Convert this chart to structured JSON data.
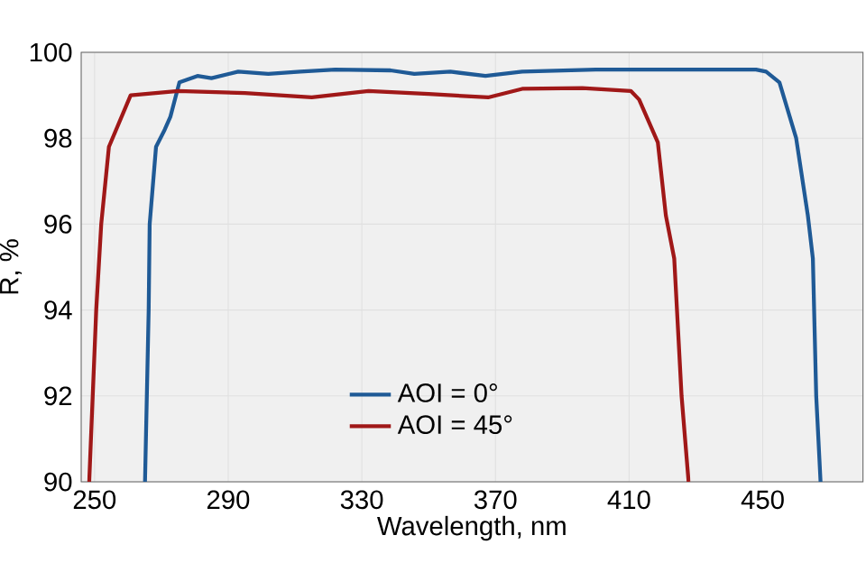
{
  "chart_data": {
    "type": "line",
    "xlabel": "Wavelength, nm",
    "ylabel": "R, %",
    "xlim": [
      246,
      480
    ],
    "ylim": [
      90,
      100
    ],
    "xticks": [
      250,
      290,
      330,
      370,
      410,
      450
    ],
    "yticks": [
      90,
      92,
      94,
      96,
      98,
      100
    ],
    "grid": true,
    "legend": "bottom",
    "series": [
      {
        "name": "AOI = 0°",
        "color": "#1f5a96",
        "x": [
          265.1,
          266.2,
          266.5,
          268.4,
          271,
          272.7,
          275.4,
          280.8,
          285,
          293,
          302,
          311.6,
          322,
          338.6,
          345.7,
          356.5,
          367,
          378,
          400,
          448,
          451,
          455,
          460,
          463.5,
          465,
          466,
          467.3
        ],
        "values": [
          90,
          94,
          96,
          97.8,
          98.2,
          98.5,
          99.3,
          99.45,
          99.4,
          99.55,
          99.5,
          99.55,
          99.6,
          99.58,
          99.5,
          99.55,
          99.45,
          99.55,
          99.6,
          99.6,
          99.55,
          99.3,
          98,
          96.2,
          95.2,
          92,
          90
        ]
      },
      {
        "name": "AOI = 45°",
        "color": "#a01818",
        "x": [
          248.4,
          250.5,
          252,
          254.3,
          260.8,
          275,
          295,
          315,
          332,
          350,
          367.8,
          378,
          396,
          410.5,
          413,
          418.6,
          421,
          423.5,
          425.7,
          427.8
        ],
        "values": [
          90,
          94,
          96,
          97.8,
          99.0,
          99.1,
          99.05,
          98.95,
          99.1,
          99.03,
          98.95,
          99.15,
          99.17,
          99.1,
          98.9,
          97.9,
          96.2,
          95.2,
          92,
          90
        ]
      }
    ]
  }
}
